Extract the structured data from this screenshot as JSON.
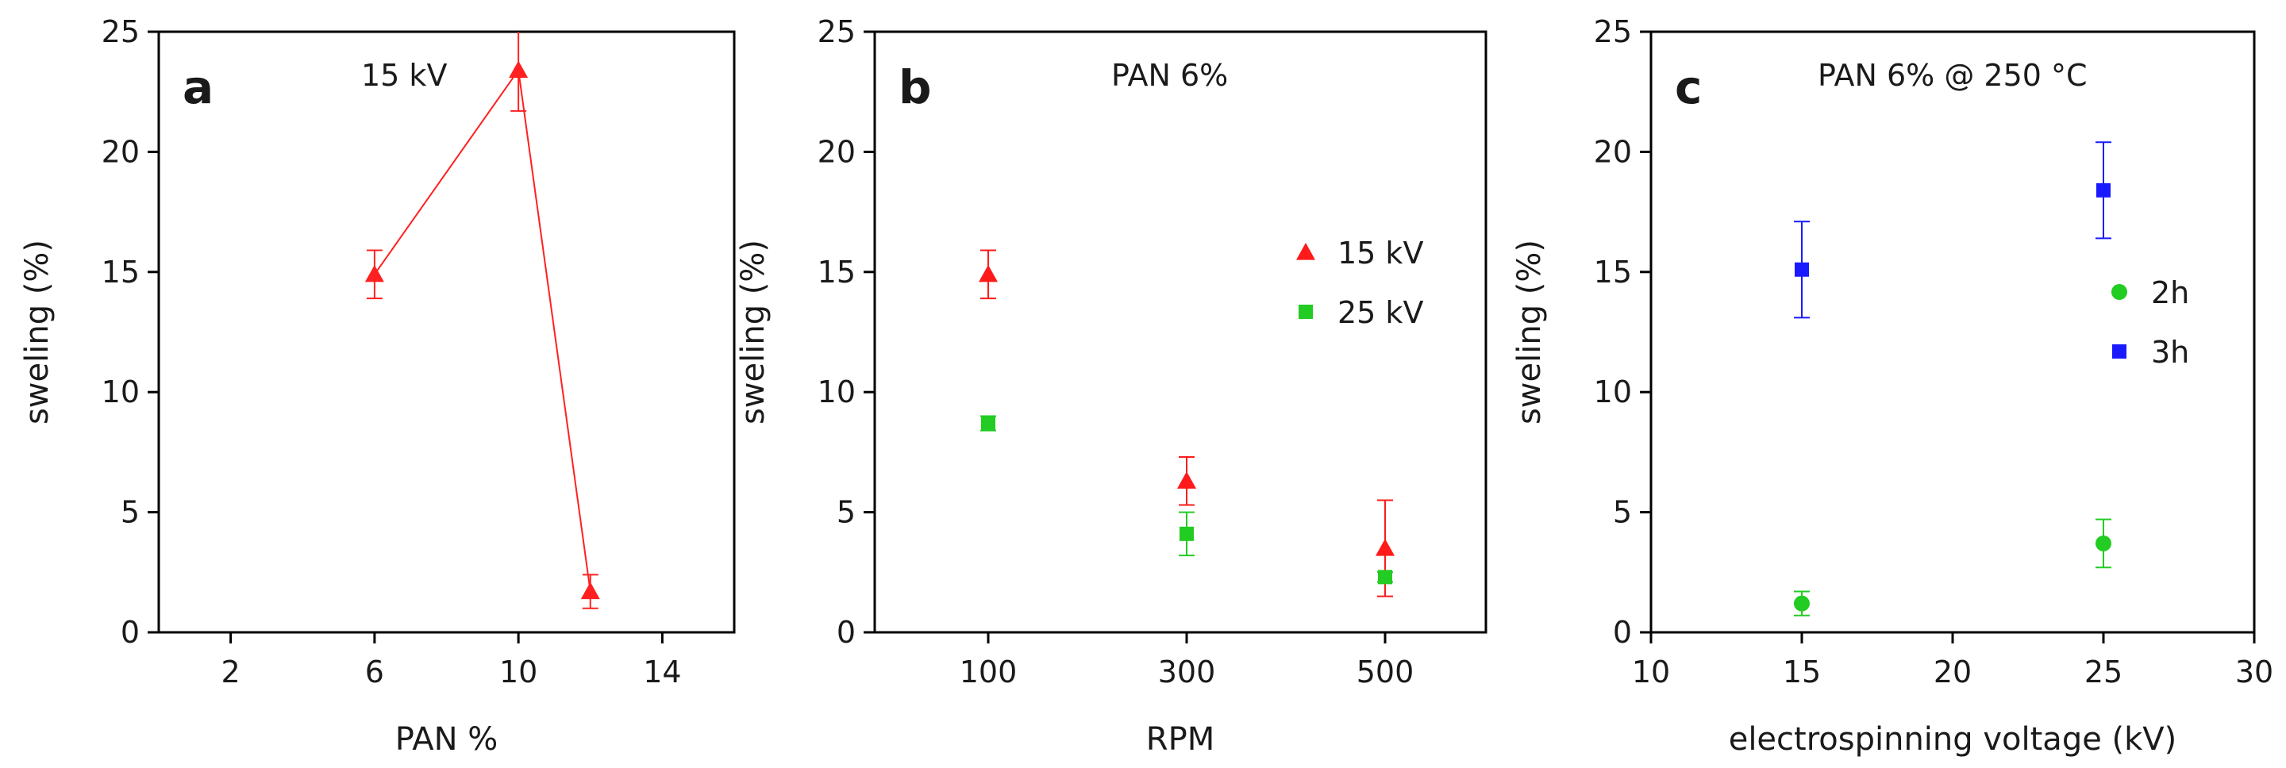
{
  "chart_data": [
    {
      "type": "line",
      "panel_label": "a",
      "annotation": "15 kV",
      "xlabel": "PAN %",
      "ylabel": "sweling (%)",
      "xlim": [
        0,
        16
      ],
      "ylim": [
        0,
        25
      ],
      "xticks": [
        "2",
        "6",
        "10",
        "14"
      ],
      "yticks": [
        "0",
        "5",
        "10",
        "15",
        "20",
        "25"
      ],
      "color": "#ff2020",
      "series": [
        {
          "name": "15 kV",
          "marker": "triangle",
          "connected": true,
          "x": [
            6,
            10,
            12
          ],
          "y": [
            14.9,
            23.4,
            1.7
          ],
          "err": [
            1.0,
            1.7,
            0.7
          ]
        }
      ]
    },
    {
      "type": "scatter",
      "panel_label": "b",
      "annotation": "PAN 6%",
      "xlabel": "RPM",
      "ylabel": "sweling (%)",
      "categories": [
        "100",
        "300",
        "500"
      ],
      "ylim": [
        0,
        25
      ],
      "yticks": [
        "0",
        "5",
        "10",
        "15",
        "20",
        "25"
      ],
      "legend": "right",
      "series": [
        {
          "name": "15 kV",
          "marker": "triangle",
          "color": "#ff1a1a",
          "values": [
            14.9,
            6.3,
            3.5
          ],
          "err": [
            1.0,
            1.0,
            2.0
          ]
        },
        {
          "name": "25 kV",
          "marker": "square",
          "color": "#22cc22",
          "values": [
            8.7,
            4.1,
            2.3
          ],
          "err": [
            0.3,
            0.9,
            0.2
          ]
        }
      ]
    },
    {
      "type": "scatter",
      "panel_label": "c",
      "annotation": "PAN 6% @ 250 °C",
      "xlabel": "electrospinning voltage (kV)",
      "ylabel": "sweling (%)",
      "xlim": [
        10,
        30
      ],
      "ylim": [
        0,
        25
      ],
      "xticks": [
        "10",
        "15",
        "20",
        "25",
        "30"
      ],
      "yticks": [
        "0",
        "5",
        "10",
        "15",
        "20",
        "25"
      ],
      "legend": "right",
      "series": [
        {
          "name": "2h",
          "marker": "circle",
          "color": "#22cc22",
          "x": [
            15,
            25
          ],
          "y": [
            1.2,
            3.7
          ],
          "err": [
            0.5,
            1.0
          ]
        },
        {
          "name": "3h",
          "marker": "square",
          "color": "#1a1aff",
          "x": [
            15,
            25
          ],
          "y": [
            15.1,
            18.4
          ],
          "err": [
            2.0,
            2.0
          ]
        }
      ]
    }
  ]
}
